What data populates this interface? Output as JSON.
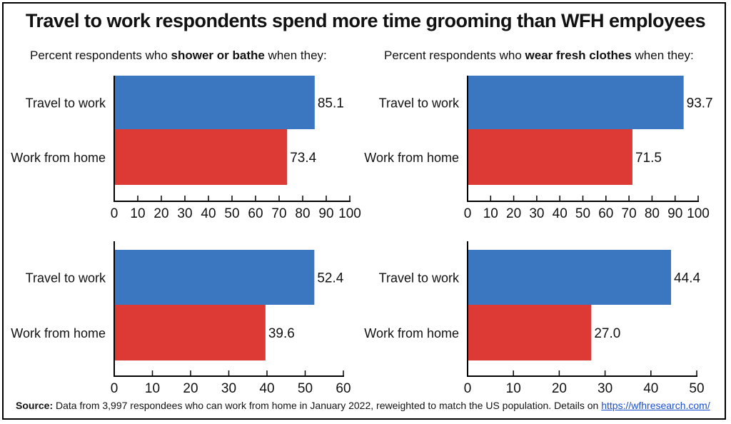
{
  "title": "Travel to work respondents spend more time grooming than WFH employees",
  "subtitles": {
    "left": {
      "prefix": "Percent respondents who ",
      "bold": "shower or bathe",
      "suffix": " when they:"
    },
    "right": {
      "prefix": "Percent respondents who ",
      "bold": "wear fresh clothes",
      "suffix": " when they:"
    }
  },
  "source": {
    "label": "Source:",
    "text": " Data from 3,997 respondees who can work from home in January 2022, reweighted to match the US population. Details on ",
    "link": "https://wfhresearch.com/"
  },
  "colors": {
    "travel": "#3a77c0",
    "home": "#de3a35",
    "axis": "#000000"
  },
  "chart_data": [
    {
      "type": "bar",
      "orientation": "horizontal",
      "title": "Percent respondents who shower or bathe when they:",
      "categories": [
        "Travel to work",
        "Work from home"
      ],
      "values": [
        85.1,
        73.4
      ],
      "value_labels": [
        "85.1",
        "73.4"
      ],
      "xlim": [
        0,
        100
      ],
      "ticks": [
        "0",
        "10",
        "20",
        "30",
        "40",
        "50",
        "60",
        "70",
        "80",
        "90",
        "100"
      ]
    },
    {
      "type": "bar",
      "orientation": "horizontal",
      "title": "Percent respondents who wear fresh clothes when they:",
      "categories": [
        "Travel to work",
        "Work from home"
      ],
      "values": [
        93.7,
        71.5
      ],
      "value_labels": [
        "93.7",
        "71.5"
      ],
      "xlim": [
        0,
        100
      ],
      "ticks": [
        "0",
        "10",
        "20",
        "30",
        "40",
        "50",
        "60",
        "70",
        "80",
        "90",
        "100"
      ]
    },
    {
      "type": "bar",
      "orientation": "horizontal",
      "title": "",
      "categories": [
        "Travel to work",
        "Work from home"
      ],
      "values": [
        52.4,
        39.6
      ],
      "value_labels": [
        "52.4",
        "39.6"
      ],
      "xlim": [
        0,
        60
      ],
      "ticks": [
        "0",
        "10",
        "20",
        "30",
        "40",
        "50",
        "60"
      ]
    },
    {
      "type": "bar",
      "orientation": "horizontal",
      "title": "",
      "categories": [
        "Travel to work",
        "Work from home"
      ],
      "values": [
        44.4,
        27.0
      ],
      "value_labels": [
        "44.4",
        "27.0"
      ],
      "xlim": [
        0,
        50
      ],
      "ticks": [
        "0",
        "10",
        "20",
        "30",
        "40",
        "50"
      ]
    }
  ]
}
